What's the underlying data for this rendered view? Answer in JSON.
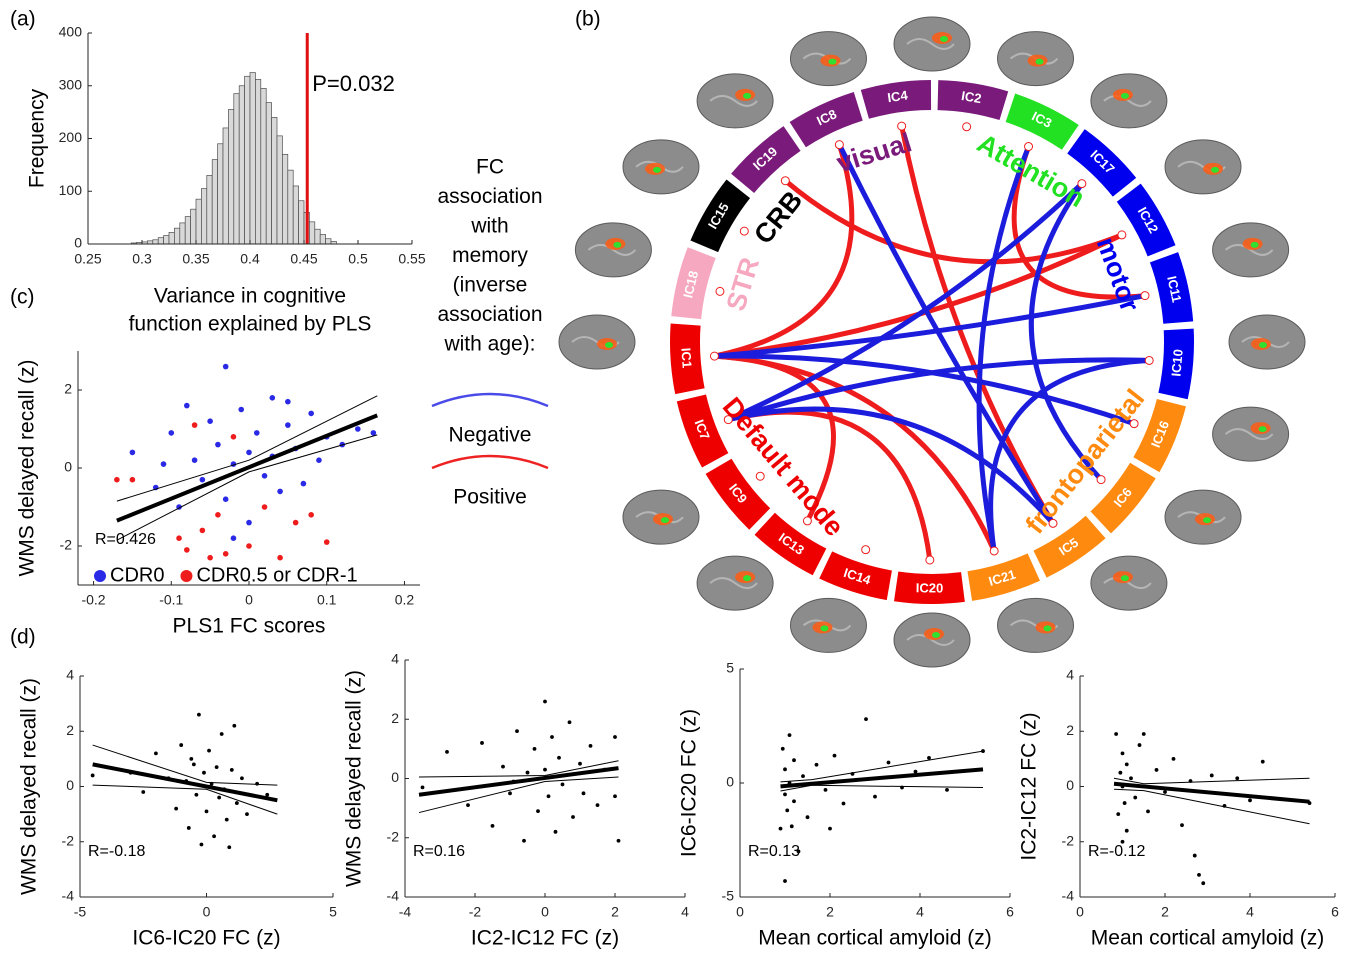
{
  "panel_labels": [
    "(a)",
    "(b)",
    "(c)",
    "(d)"
  ],
  "chart_data": [
    {
      "type": "histogram",
      "xlabel": [
        "Variance in cognitive",
        "function explained by PLS"
      ],
      "ylabel": "Frequency",
      "bins": [
        0.29,
        0.295,
        0.3,
        0.305,
        0.31,
        0.315,
        0.32,
        0.325,
        0.33,
        0.335,
        0.34,
        0.345,
        0.35,
        0.355,
        0.36,
        0.365,
        0.37,
        0.375,
        0.38,
        0.385,
        0.39,
        0.395,
        0.4,
        0.405,
        0.41,
        0.415,
        0.42,
        0.425,
        0.43,
        0.435,
        0.44,
        0.445,
        0.45,
        0.455,
        0.46,
        0.465,
        0.47,
        0.475,
        0.48
      ],
      "values": [
        2,
        3,
        4,
        6,
        8,
        12,
        16,
        22,
        30,
        40,
        52,
        66,
        85,
        105,
        130,
        160,
        190,
        220,
        255,
        285,
        300,
        318,
        325,
        312,
        295,
        268,
        240,
        205,
        170,
        140,
        110,
        82,
        60,
        42,
        28,
        18,
        10,
        5
      ],
      "color": "#d9d9d9",
      "xlim": [
        0.25,
        0.55
      ],
      "xticks": [
        0.25,
        0.3,
        0.35,
        0.4,
        0.45,
        0.5,
        0.55
      ],
      "ylim": [
        0,
        400
      ],
      "yticks": [
        0,
        100,
        200,
        300,
        400
      ],
      "marker_line": {
        "x": 0.453,
        "color": "#e01010",
        "label": "P=0.032"
      }
    },
    {
      "type": "chord",
      "nodes": [
        {
          "label": "IC4",
          "color": "#7a1a7a"
        },
        {
          "label": "IC2",
          "color": "#7a1a7a"
        },
        {
          "label": "IC3",
          "color": "#22e022"
        },
        {
          "label": "IC17",
          "color": "#0000ee"
        },
        {
          "label": "IC12",
          "color": "#0000ee"
        },
        {
          "label": "IC11",
          "color": "#0000ee"
        },
        {
          "label": "IC10",
          "color": "#0000ee"
        },
        {
          "label": "IC16",
          "color": "#ff8a10"
        },
        {
          "label": "IC6",
          "color": "#ff8a10"
        },
        {
          "label": "IC5",
          "color": "#ff8a10"
        },
        {
          "label": "IC21",
          "color": "#ff8a10"
        },
        {
          "label": "IC20",
          "color": "#ee0000"
        },
        {
          "label": "IC14",
          "color": "#ee0000"
        },
        {
          "label": "IC13",
          "color": "#ee0000"
        },
        {
          "label": "IC9",
          "color": "#ee0000"
        },
        {
          "label": "IC7",
          "color": "#ee0000"
        },
        {
          "label": "IC1",
          "color": "#ee0000"
        },
        {
          "label": "IC18",
          "color": "#f6a8c0"
        },
        {
          "label": "IC15",
          "color": "#000000"
        },
        {
          "label": "IC19",
          "color": "#7a1a7a"
        },
        {
          "label": "IC8",
          "color": "#7a1a7a"
        }
      ],
      "groups": [
        {
          "label": "visual",
          "color": "#7a1a7a"
        },
        {
          "label": "Attention",
          "color": "#22e022"
        },
        {
          "label": "motor",
          "color": "#0000ee"
        },
        {
          "label": "frontoparietal",
          "color": "#ff8a10"
        },
        {
          "label": "Default mode",
          "color": "#ee0000"
        },
        {
          "label": "STR",
          "color": "#f6a8c0"
        },
        {
          "label": "CRB",
          "color": "#000000"
        }
      ],
      "links": [
        {
          "from": 19,
          "to": 4,
          "color": "#ee1c1c"
        },
        {
          "from": 20,
          "to": 16,
          "color": "#ee1c1c"
        },
        {
          "from": 0,
          "to": 9,
          "color": "#ee1c1c"
        },
        {
          "from": 2,
          "to": 5,
          "color": "#ee1c1c"
        },
        {
          "from": 16,
          "to": 4,
          "color": "#ee1c1c"
        },
        {
          "from": 16,
          "to": 13,
          "color": "#ee1c1c"
        },
        {
          "from": 15,
          "to": 11,
          "color": "#ee1c1c"
        },
        {
          "from": 16,
          "to": 10,
          "color": "#ee1c1c"
        },
        {
          "from": 3,
          "to": 15,
          "color": "#1c1cdd"
        },
        {
          "from": 3,
          "to": 8,
          "color": "#1c1cdd"
        },
        {
          "from": 5,
          "to": 16,
          "color": "#1c1cdd"
        },
        {
          "from": 7,
          "to": 16,
          "color": "#1c1cdd"
        },
        {
          "from": 6,
          "to": 15,
          "color": "#1c1cdd"
        },
        {
          "from": 6,
          "to": 10,
          "color": "#1c1cdd"
        },
        {
          "from": 2,
          "to": 10,
          "color": "#1c1cdd"
        },
        {
          "from": 15,
          "to": 9,
          "color": "#1c1cdd"
        },
        {
          "from": 20,
          "to": 9,
          "color": "#1c1cdd"
        }
      ],
      "legend": {
        "title": [
          "FC",
          "association",
          "with",
          "memory",
          "(inverse",
          "association",
          "with age):"
        ],
        "items": [
          {
            "label": "Negative",
            "color": "#4a4ae8"
          },
          {
            "label": "Positive",
            "color": "#ee2222"
          }
        ]
      }
    },
    {
      "type": "scatter",
      "xlabel": "PLS1 FC scores",
      "ylabel": "WMS delayed recall (z)",
      "xlim": [
        -0.22,
        0.22
      ],
      "xticks": [
        -0.2,
        -0.1,
        0,
        0.1,
        0.2
      ],
      "ylim": [
        -3,
        3
      ],
      "yticks": [
        -2,
        0,
        2
      ],
      "series": [
        {
          "name": "CDR0",
          "color": "#2a2ae6",
          "x": [
            -0.15,
            -0.12,
            -0.1,
            -0.09,
            -0.08,
            -0.07,
            -0.06,
            -0.05,
            -0.04,
            -0.03,
            -0.03,
            -0.02,
            -0.01,
            0,
            0,
            0.01,
            0.02,
            0.03,
            0.03,
            0.04,
            0.05,
            0.06,
            0.07,
            0.08,
            0.09,
            0.1,
            0.12,
            0.14,
            0.16,
            -0.11,
            -0.02,
            0.05
          ],
          "values": [
            0.4,
            -0.5,
            0.9,
            -1.0,
            1.6,
            0.2,
            -0.3,
            1.2,
            0.6,
            -0.8,
            2.6,
            0.1,
            1.5,
            0.4,
            -1.4,
            0.9,
            -0.2,
            1.8,
            0.3,
            -0.6,
            1.1,
            0.5,
            -0.4,
            1.4,
            0.2,
            0.8,
            0.6,
            1.0,
            0.9,
            0.1,
            -1.8,
            1.7
          ]
        },
        {
          "name": "CDR0.5 or CDR-1",
          "color": "#ee1c1c",
          "x": [
            -0.17,
            -0.15,
            -0.09,
            -0.08,
            -0.06,
            -0.05,
            -0.04,
            -0.03,
            -0.02,
            0.0,
            0.02,
            0.04,
            0.06,
            0.08,
            0.1,
            -0.07
          ],
          "values": [
            -0.3,
            -0.3,
            -1.8,
            -2.1,
            -1.6,
            -2.3,
            -1.2,
            -2.2,
            0.8,
            -2.0,
            -1.0,
            -2.3,
            -1.4,
            -1.2,
            -1.9,
            1.1
          ]
        }
      ],
      "fit": {
        "x": [
          -0.17,
          0.165
        ],
        "values": [
          -1.35,
          1.35
        ]
      },
      "ci": [
        {
          "x": [
            -0.17,
            0,
            0.165
          ],
          "values": [
            -0.85,
            0.2,
            1.85
          ]
        },
        {
          "x": [
            -0.17,
            0,
            0.165
          ],
          "values": [
            -1.85,
            -0.1,
            0.85
          ]
        }
      ],
      "annotation": "R=0.426",
      "legend": "lower left"
    },
    {
      "type": "scatter",
      "xlabel": "IC6-IC20 FC (z)",
      "ylabel": "WMS delayed recall (z)",
      "xlim": [
        -5,
        5
      ],
      "xticks": [
        -5,
        0,
        5
      ],
      "ylim": [
        -4,
        4
      ],
      "yticks": [
        -4,
        -2,
        0,
        2,
        4
      ],
      "series": [
        {
          "color": "#000000",
          "x": [
            -2,
            -1.5,
            -1.2,
            -1,
            -0.8,
            -0.7,
            -0.5,
            -0.4,
            -0.3,
            -0.2,
            -0.1,
            0,
            0.1,
            0.2,
            0.3,
            0.4,
            0.5,
            0.6,
            0.7,
            0.8,
            1,
            1.1,
            1.2,
            1.4,
            1.6,
            2,
            2.4,
            -3,
            -4.5,
            -2.5,
            0.9,
            -0.6
          ],
          "values": [
            1.2,
            0.3,
            -0.8,
            1.5,
            0.2,
            -1.5,
            0.8,
            -0.3,
            2.6,
            -2.1,
            0.5,
            -0.9,
            1.3,
            0.1,
            -1.8,
            0.7,
            -0.4,
            1.9,
            -0.1,
            -1.2,
            0.6,
            2.2,
            -0.6,
            0.3,
            -1.0,
            0.1,
            -0.3,
            0.5,
            0.4,
            -0.2,
            -2.2,
            1.0
          ]
        }
      ],
      "fit": {
        "x": [
          -4.5,
          2.8
        ],
        "values": [
          0.8,
          -0.5
        ]
      },
      "ci": [
        {
          "x": [
            -4.5,
            0,
            2.8
          ],
          "values": [
            1.5,
            0.15,
            0.05
          ]
        },
        {
          "x": [
            -4.5,
            0,
            2.8
          ],
          "values": [
            0.05,
            -0.1,
            -1.0
          ]
        }
      ],
      "annotation": "R=-0.18"
    },
    {
      "type": "scatter",
      "xlabel": "IC2-IC12 FC (z)",
      "ylabel": "WMS delayed recall (z)",
      "xlim": [
        -4,
        4
      ],
      "xticks": [
        -4,
        -2,
        0,
        2,
        4
      ],
      "ylim": [
        -4,
        4
      ],
      "yticks": [
        -4,
        -2,
        0,
        2,
        4
      ],
      "series": [
        {
          "color": "#000000",
          "x": [
            -3.5,
            -2.8,
            -2.2,
            -1.8,
            -1.5,
            -1.2,
            -1,
            -0.8,
            -0.6,
            -0.5,
            -0.3,
            -0.2,
            0,
            0,
            0.1,
            0.2,
            0.3,
            0.4,
            0.5,
            0.7,
            0.8,
            1,
            1.1,
            1.3,
            1.5,
            1.7,
            2,
            2,
            2.1,
            -0.9
          ],
          "values": [
            -0.3,
            0.9,
            -0.9,
            1.2,
            -1.6,
            0.4,
            -0.5,
            1.6,
            -2.1,
            0.2,
            1.0,
            -1.1,
            2.6,
            0.3,
            -0.6,
            1.4,
            -1.8,
            0.7,
            -0.2,
            1.9,
            -1.3,
            0.5,
            -0.5,
            1.1,
            -0.9,
            0.3,
            1.4,
            -0.6,
            -2.1,
            -0.1
          ]
        }
      ],
      "fit": {
        "x": [
          -3.6,
          2.1
        ],
        "values": [
          -0.55,
          0.35
        ]
      },
      "ci": [
        {
          "x": [
            -3.6,
            0,
            2.1
          ],
          "values": [
            0.05,
            0.1,
            0.6
          ]
        },
        {
          "x": [
            -3.6,
            0,
            2.1
          ],
          "values": [
            -1.15,
            -0.1,
            0.05
          ]
        }
      ],
      "annotation": "R=0.16"
    },
    {
      "type": "scatter",
      "xlabel": "Mean cortical amyloid (z)",
      "ylabel": "IC6-IC20 FC (z)",
      "xlim": [
        0,
        6
      ],
      "xticks": [
        0,
        2,
        4,
        6
      ],
      "ylim": [
        -5,
        5
      ],
      "yticks": [
        -5,
        0,
        5
      ],
      "series": [
        {
          "color": "#000000",
          "x": [
            0.9,
            0.95,
            1,
            1,
            1,
            1.05,
            1.1,
            1.1,
            1.2,
            1.2,
            1.3,
            1.4,
            1.5,
            1.7,
            1.9,
            2.1,
            2.3,
            2.5,
            2.8,
            3,
            3.3,
            3.6,
            3.9,
            4.2,
            4.6,
            5.4,
            2,
            1.15
          ],
          "values": [
            -2.0,
            1.5,
            -0.5,
            0.6,
            -4.3,
            -1.2,
            2.1,
            0,
            -0.8,
            1.0,
            -3.0,
            0.3,
            -1.5,
            0.8,
            -0.3,
            1.2,
            -0.9,
            0.4,
            2.8,
            -0.6,
            0.9,
            -0.2,
            0.5,
            1.1,
            -0.3,
            1.4,
            -2.0,
            -1.9
          ]
        }
      ],
      "fit": {
        "x": [
          0.9,
          5.4
        ],
        "values": [
          -0.15,
          0.6
        ]
      },
      "ci": [
        {
          "x": [
            0.9,
            1.6,
            5.4
          ],
          "values": [
            0.05,
            0.15,
            1.4
          ]
        },
        {
          "x": [
            0.9,
            1.6,
            5.4
          ],
          "values": [
            -0.35,
            -0.1,
            -0.2
          ]
        }
      ],
      "annotation": "R=0.13"
    },
    {
      "type": "scatter",
      "xlabel": "Mean cortical amyloid (z)",
      "ylabel": "IC2-IC12 FC (z)",
      "xlim": [
        0,
        6
      ],
      "xticks": [
        0,
        2,
        4,
        6
      ],
      "ylim": [
        -4,
        4
      ],
      "yticks": [
        -4,
        -2,
        0,
        2,
        4
      ],
      "series": [
        {
          "color": "#000000",
          "x": [
            0.85,
            0.9,
            0.95,
            1,
            1,
            1,
            1.05,
            1.1,
            1.1,
            1.2,
            1.3,
            1.4,
            1.6,
            1.8,
            2,
            2.2,
            2.4,
            2.6,
            2.8,
            2.9,
            3.1,
            3.4,
            3.7,
            4,
            4.3,
            5.4,
            2.7,
            1.5
          ],
          "values": [
            1.9,
            -1.0,
            0.5,
            -2.0,
            1.2,
            0,
            -0.6,
            0.8,
            -1.6,
            0.3,
            -0.4,
            1.5,
            -0.9,
            0.6,
            -0.2,
            1.0,
            -1.4,
            0.2,
            -3.2,
            -3.5,
            0.4,
            -0.7,
            0.3,
            -0.5,
            0.9,
            -0.6,
            -2.5,
            1.9
          ]
        }
      ],
      "fit": {
        "x": [
          0.8,
          5.4
        ],
        "values": [
          0.1,
          -0.55
        ]
      },
      "ci": [
        {
          "x": [
            0.8,
            1.5,
            5.4
          ],
          "values": [
            0.3,
            0.1,
            0.3
          ]
        },
        {
          "x": [
            0.8,
            1.5,
            5.4
          ],
          "values": [
            -0.1,
            -0.15,
            -1.35
          ]
        }
      ],
      "annotation": "R=-0.12"
    }
  ]
}
